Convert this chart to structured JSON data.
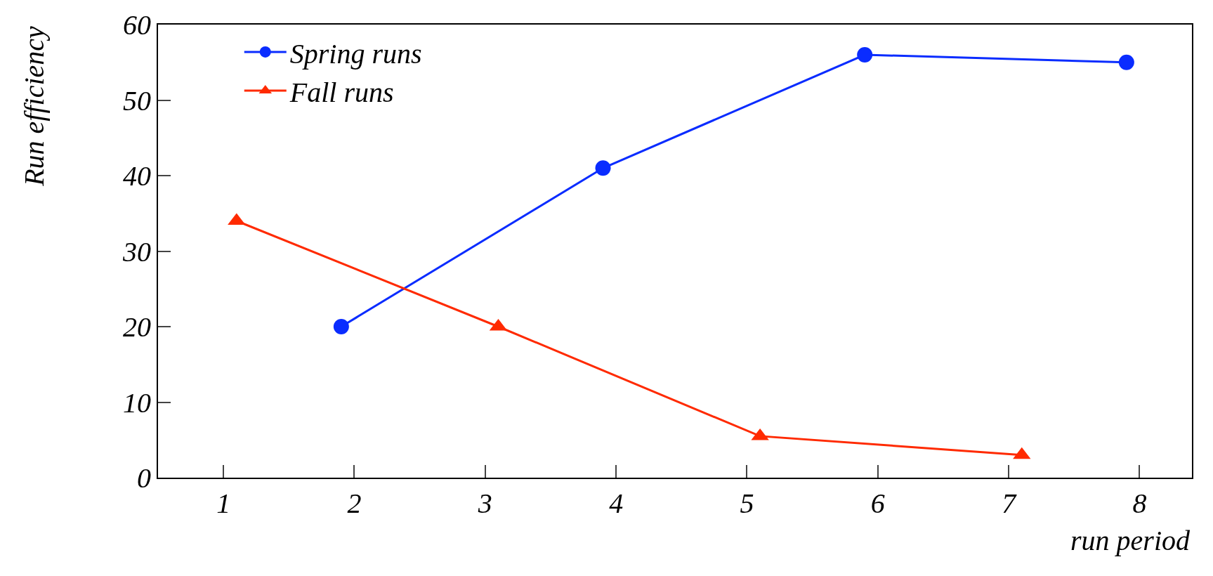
{
  "chart_data": {
    "type": "line",
    "xlabel": "run period",
    "ylabel": "Run efficiency",
    "xlim": [
      0.5,
      8.4
    ],
    "xticks": [
      1,
      2,
      3,
      4,
      5,
      6,
      7,
      8
    ],
    "ylim": [
      0,
      60
    ],
    "yticks": [
      0,
      10,
      20,
      30,
      40,
      50,
      60
    ],
    "series": [
      {
        "name": "Spring runs",
        "color": "#0a2cff",
        "marker": "circle",
        "x": [
          1.9,
          3.9,
          5.9,
          7.9
        ],
        "values": [
          20,
          41,
          56,
          55
        ]
      },
      {
        "name": "Fall runs",
        "color": "#ff2a00",
        "marker": "triangle",
        "x": [
          1.1,
          3.1,
          5.1,
          7.1
        ],
        "values": [
          34,
          20,
          5.5,
          3
        ]
      }
    ],
    "legend": "top left",
    "grid": false,
    "line_style": "solid"
  }
}
